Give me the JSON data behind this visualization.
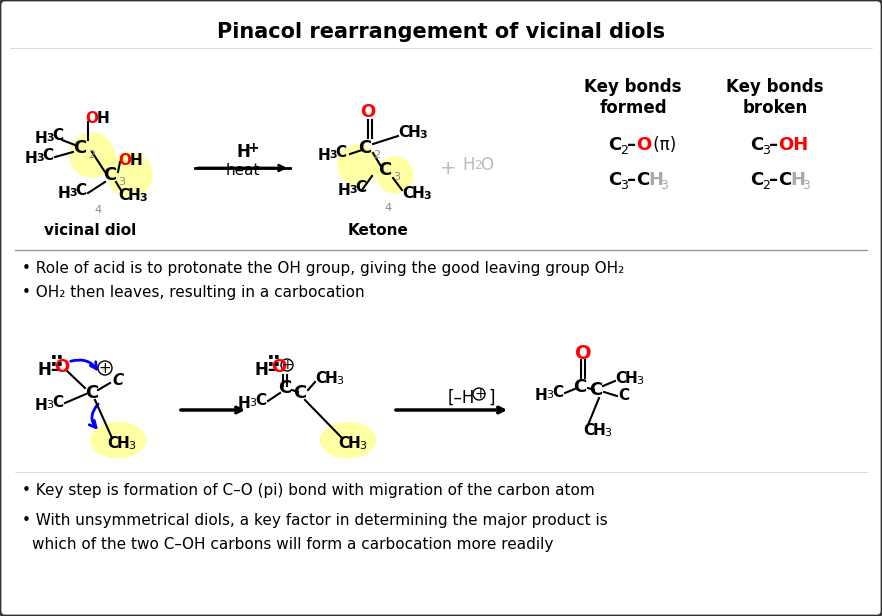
{
  "title": "Pinacol rearrangement of vicinal diols",
  "background_color": "#ffffff",
  "border_color": "#333333",
  "text_color": "#000000",
  "red_color": "#ff0000",
  "gray_color": "#aaaaaa",
  "blue_color": "#0000ff",
  "yellow_highlight": "#ffffaa",
  "bullet1": "Role of acid is to protonate the OH group, giving the good leaving group OH₂",
  "bullet2": "OH₂ then leaves, resulting in a carbocation",
  "bullet3": "Key step is formation of C–O (pi) bond with migration of the carbon atom",
  "bullet4": "With unsymmetrical diols, a key factor in determining the major product is\n   which of the two C–OH carbons will form a carbocation more readily",
  "label_vicinal_diol": "vicinal diol",
  "label_ketone": "Ketone",
  "key_bonds_formed": "Key bonds\nformed",
  "key_bonds_broken": "Key bonds\nbroken"
}
